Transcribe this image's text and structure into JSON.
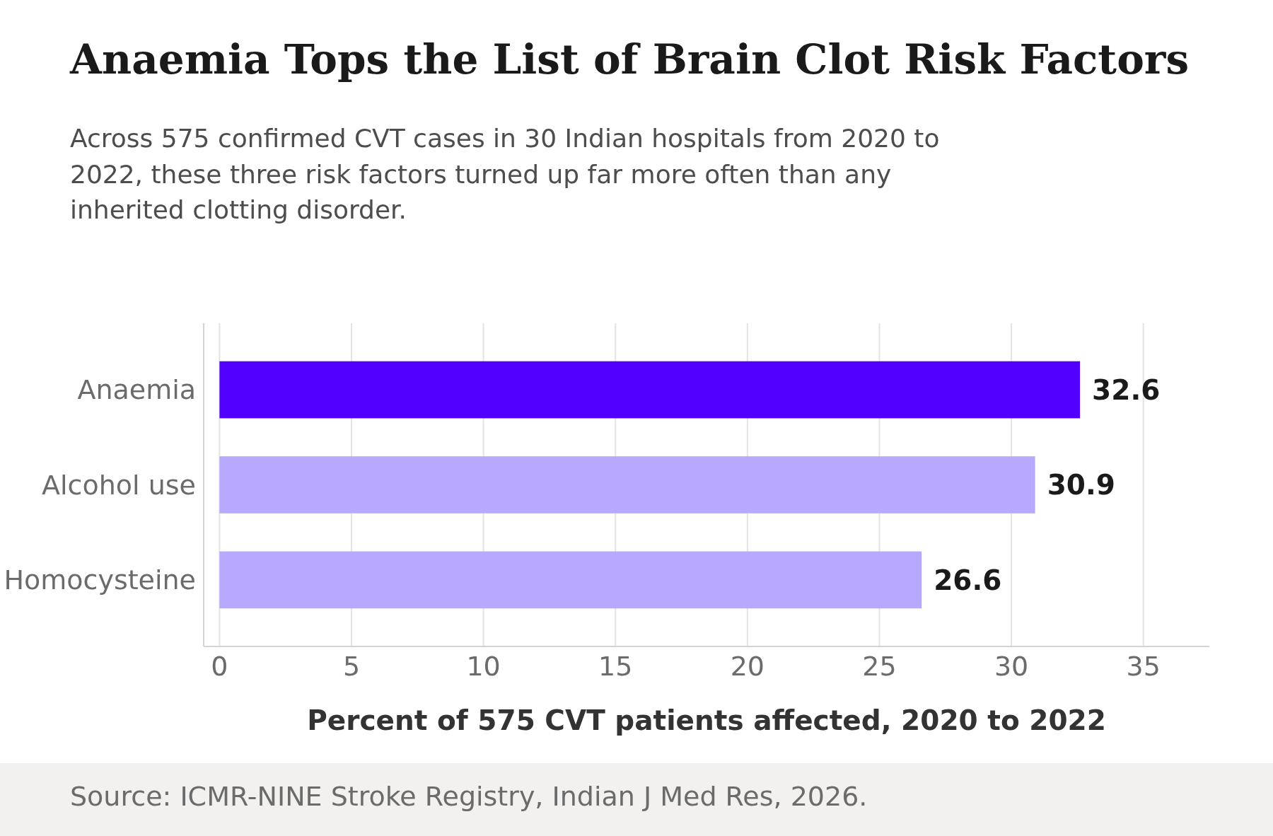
{
  "chart_data": {
    "type": "bar",
    "orientation": "horizontal",
    "title": "Anaemia Tops the List of Brain Clot Risk Factors",
    "subtitle": "Across 575 confirmed CVT cases in 30 Indian hospitals from 2020 to 2022, these three risk factors turned up far more often than any inherited clotting disorder.",
    "xlabel": "Percent of 575 CVT patients affected, 2020 to 2022",
    "categories": [
      "Anaemia",
      "Alcohol use",
      "Homocysteine"
    ],
    "values": [
      32.6,
      30.9,
      26.6
    ],
    "colors": [
      "#5200ff",
      "#b8a9ff",
      "#b8a9ff"
    ],
    "xlim": [
      -0.6,
      37.5
    ],
    "xticks": [
      0,
      5,
      10,
      15,
      20,
      25,
      30,
      35
    ],
    "grid": "x",
    "data_labels": true,
    "annotations": [
      "Source: ICMR-NINE Stroke Registry, Indian J Med Res, 2026."
    ]
  }
}
